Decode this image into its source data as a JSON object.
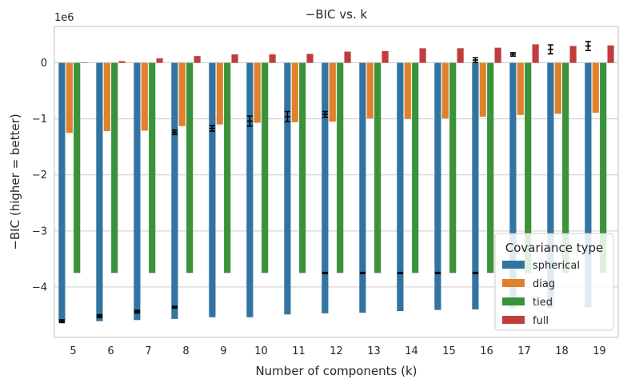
{
  "chart_data": {
    "type": "bar",
    "title": "−BIC vs. k",
    "xlabel": "Number of components (k)",
    "ylabel": "−BIC (higher = better)",
    "y_offset_label": "1e6",
    "categories": [
      "5",
      "6",
      "7",
      "8",
      "9",
      "10",
      "11",
      "12",
      "13",
      "14",
      "15",
      "16",
      "17",
      "18",
      "19"
    ],
    "ylim": [
      -4.9,
      0.65
    ],
    "yticks": [
      0,
      -1,
      -2,
      -3,
      -4
    ],
    "ytick_labels": [
      "0",
      "−1",
      "−2",
      "−3",
      "−4"
    ],
    "grid": true,
    "legend": {
      "title": "Covariance type",
      "placement": "bottom-right"
    },
    "series": [
      {
        "name": "spherical",
        "color": "#3274a1",
        "values": [
          -4.63,
          -4.61,
          -4.59,
          -4.57,
          -4.54,
          -4.54,
          -4.49,
          -4.47,
          -4.46,
          -4.43,
          -4.41,
          -4.4,
          -4.38,
          -4.37,
          -4.36
        ]
      },
      {
        "name": "diag",
        "color": "#e1812c",
        "values": [
          -1.25,
          -1.22,
          -1.21,
          -1.13,
          -1.1,
          -1.07,
          -1.06,
          -1.05,
          -0.99,
          -1.0,
          -0.99,
          -0.96,
          -0.93,
          -0.91,
          -0.89
        ]
      },
      {
        "name": "tied",
        "color": "#3a923a",
        "values": [
          -3.75,
          -3.75,
          -3.75,
          -3.75,
          -3.75,
          -3.75,
          -3.75,
          -3.75,
          -3.75,
          -3.75,
          -3.75,
          -3.75,
          -3.75,
          -3.75,
          -3.75
        ]
      },
      {
        "name": "full",
        "color": "#c03d3e",
        "values": [
          0.01,
          0.03,
          0.08,
          0.12,
          0.15,
          0.15,
          0.16,
          0.2,
          0.21,
          0.26,
          0.26,
          0.27,
          0.33,
          0.3,
          0.31
        ]
      }
    ],
    "error_bars": [
      {
        "k": "5",
        "y": -4.61,
        "err": 0.025
      },
      {
        "k": "6",
        "y": -4.52,
        "err": 0.025
      },
      {
        "k": "7",
        "y": -4.44,
        "err": 0.025
      },
      {
        "k": "8",
        "y": -4.36,
        "err": 0.015
      },
      {
        "k": "8",
        "y": -1.24,
        "err": 0.04
      },
      {
        "k": "9",
        "y": -1.17,
        "err": 0.05
      },
      {
        "k": "10",
        "y": -1.04,
        "err": 0.09
      },
      {
        "k": "11",
        "y": -0.96,
        "err": 0.09
      },
      {
        "k": "12",
        "y": -0.92,
        "err": 0.05
      },
      {
        "k": "12",
        "y": -3.75,
        "err": 0.01
      },
      {
        "k": "13",
        "y": -3.75,
        "err": 0.01
      },
      {
        "k": "14",
        "y": -3.75,
        "err": 0.01
      },
      {
        "k": "15",
        "y": -3.75,
        "err": 0.01
      },
      {
        "k": "16",
        "y": -3.75,
        "err": 0.01
      },
      {
        "k": "16",
        "y": 0.05,
        "err": 0.04
      },
      {
        "k": "17",
        "y": 0.15,
        "err": 0.03
      },
      {
        "k": "18",
        "y": 0.24,
        "err": 0.08
      },
      {
        "k": "19",
        "y": 0.3,
        "err": 0.08
      }
    ]
  }
}
